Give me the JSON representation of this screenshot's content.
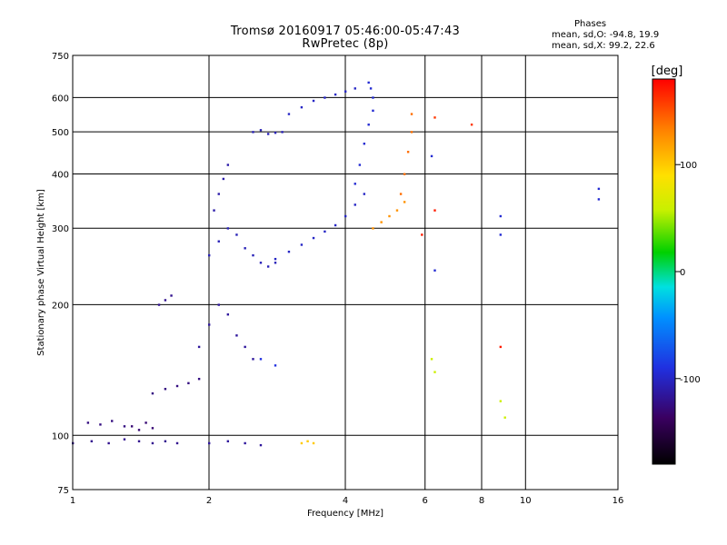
{
  "chart_data": {
    "type": "scatter",
    "title": "Tromsø 20160917 05:46:00-05:47:43",
    "subtitle": "RwPretec (8p)",
    "stats_header": "Phases",
    "stats_o": "mean, sd,O: -94.8, 19.9",
    "stats_x": "mean, sd,X:  99.2, 22.6",
    "xlabel": "Frequency [MHz]",
    "ylabel": "Stationary phase Virtual Height [km]",
    "xscale": "log",
    "yscale": "log",
    "xlim": [
      1,
      16
    ],
    "ylim": [
      75,
      750
    ],
    "xticks": [
      1,
      2,
      4,
      6,
      8,
      10,
      16
    ],
    "yticks": [
      75,
      100,
      200,
      300,
      400,
      500,
      600,
      750
    ],
    "grid": true,
    "colorbar": {
      "label": "[deg]",
      "range": [
        -180,
        180
      ],
      "ticks": [
        -100,
        0,
        100
      ]
    },
    "groups": [
      {
        "phase": -120,
        "x": [
          1.0,
          1.1,
          1.2,
          1.3,
          1.4,
          1.5,
          1.6,
          1.7
        ],
        "y": [
          96,
          97,
          96,
          98,
          97,
          96,
          97,
          96
        ]
      },
      {
        "phase": -125,
        "x": [
          1.08,
          1.15,
          1.22,
          1.3
        ],
        "y": [
          107,
          106,
          108,
          105
        ]
      },
      {
        "phase": -130,
        "x": [
          1.35,
          1.4,
          1.45,
          1.5
        ],
        "y": [
          105,
          103,
          107,
          104
        ]
      },
      {
        "phase": -115,
        "x": [
          2.0,
          2.2,
          2.4,
          2.6
        ],
        "y": [
          96,
          97,
          96,
          95
        ]
      },
      {
        "phase": 100,
        "x": [
          3.2,
          3.3,
          3.4
        ],
        "y": [
          96,
          97,
          96
        ]
      },
      {
        "phase": -125,
        "x": [
          1.5,
          1.6,
          1.7,
          1.8,
          1.9
        ],
        "y": [
          125,
          128,
          130,
          132,
          135
        ]
      },
      {
        "phase": -120,
        "x": [
          1.55,
          1.6,
          1.65
        ],
        "y": [
          200,
          205,
          210
        ]
      },
      {
        "phase": -115,
        "x": [
          1.9,
          2.0,
          2.1,
          2.2,
          2.3,
          2.4,
          2.5
        ],
        "y": [
          160,
          180,
          200,
          190,
          170,
          160,
          150
        ]
      },
      {
        "phase": -105,
        "x": [
          2.0,
          2.1,
          2.2,
          2.3,
          2.4,
          2.5,
          2.6,
          2.7,
          2.8
        ],
        "y": [
          260,
          280,
          300,
          290,
          270,
          260,
          250,
          245,
          250
        ]
      },
      {
        "phase": -110,
        "x": [
          2.05,
          2.1,
          2.15,
          2.2
        ],
        "y": [
          330,
          360,
          390,
          420
        ]
      },
      {
        "phase": -90,
        "x": [
          2.6,
          2.8
        ],
        "y": [
          150,
          145
        ]
      },
      {
        "phase": -100,
        "x": [
          2.8,
          3.0,
          3.2,
          3.4,
          3.6,
          3.8,
          4.0,
          4.2,
          4.4
        ],
        "y": [
          255,
          265,
          275,
          285,
          295,
          305,
          320,
          340,
          360
        ]
      },
      {
        "phase": -95,
        "x": [
          4.2,
          4.3,
          4.4,
          4.5,
          4.6,
          4.6,
          4.55,
          4.5
        ],
        "y": [
          380,
          420,
          470,
          520,
          560,
          600,
          630,
          650
        ]
      },
      {
        "phase": -100,
        "x": [
          3.0,
          3.2,
          3.4,
          3.6,
          3.8,
          4.0,
          4.2
        ],
        "y": [
          550,
          570,
          590,
          600,
          610,
          620,
          630
        ]
      },
      {
        "phase": -105,
        "x": [
          2.5,
          2.6,
          2.7,
          2.8,
          2.9
        ],
        "y": [
          500,
          505,
          495,
          498,
          500
        ]
      },
      {
        "phase": 125,
        "x": [
          4.6,
          4.8,
          5.0,
          5.2,
          5.4
        ],
        "y": [
          300,
          310,
          320,
          330,
          345
        ]
      },
      {
        "phase": 140,
        "x": [
          5.3,
          5.4,
          5.5,
          5.6,
          5.6
        ],
        "y": [
          360,
          400,
          450,
          500,
          550
        ]
      },
      {
        "phase": 160,
        "x": [
          6.3,
          7.6
        ],
        "y": [
          540,
          520
        ]
      },
      {
        "phase": -95,
        "x": [
          6.2,
          6.3,
          8.8,
          8.8,
          14.5,
          14.5
        ],
        "y": [
          440,
          240,
          320,
          290,
          370,
          350
        ]
      },
      {
        "phase": 60,
        "x": [
          6.2,
          6.3,
          8.8,
          9.0
        ],
        "y": [
          150,
          140,
          120,
          110
        ]
      },
      {
        "phase": 170,
        "x": [
          6.3,
          8.8,
          5.9
        ],
        "y": [
          330,
          160,
          290
        ]
      }
    ]
  }
}
